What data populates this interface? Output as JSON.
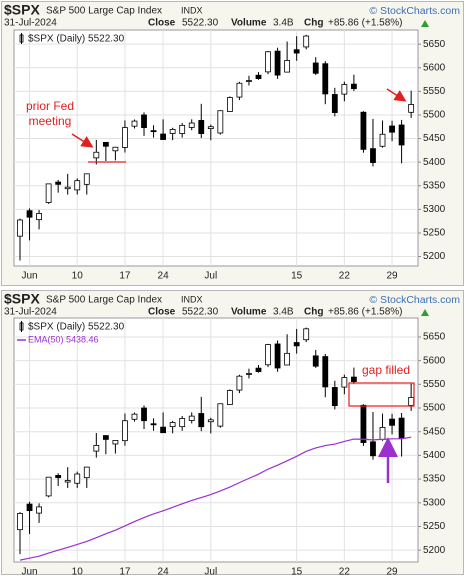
{
  "chart_data": [
    {
      "type": "candlestick",
      "symbol": "$SPX",
      "name": "S&P 500 Large Cap Index",
      "exchange": "INDX",
      "date": "31-Jul-2024",
      "quote": {
        "close_label": "Close",
        "close": "5522.30",
        "volume_label": "Volume",
        "volume": "3.4B",
        "chg_label": "Chg",
        "chg": "+85.86 (+1.58%)"
      },
      "copyright": "© StockCharts.com",
      "annotations": {
        "fed": [
          "prior Fed",
          "meeting"
        ]
      },
      "categories": [
        null,
        "Jun",
        null,
        null,
        null,
        null,
        "10",
        null,
        null,
        null,
        null,
        "17",
        null,
        null,
        null,
        "24",
        null,
        null,
        null,
        null,
        "Jul",
        null,
        null,
        null,
        null,
        null,
        null,
        null,
        null,
        "15",
        null,
        null,
        null,
        null,
        "22",
        null,
        null,
        null,
        null,
        "29",
        null,
        null
      ],
      "candles": {
        "name": "$SPX (Daily) 5522.30",
        "open": [
          5243.2,
          5297.2,
          5278.2,
          5314.5,
          5357.8,
          5343.8,
          5341.2,
          5353.0,
          5409.1,
          5441.9,
          5424.1,
          5431.1,
          5476.2,
          5500.0,
          5466.8,
          5459.6,
          5460.7,
          5460.7,
          5473.6,
          5488.5,
          5471.1,
          5461.8,
          5507.4,
          5537.9,
          5572.8,
          5584.2,
          5591.3,
          5635.2,
          5590.8,
          5638.2,
          5644.1,
          5610.1,
          5608.6,
          5543.4,
          5544.2,
          5565.3,
          5505.8,
          5428.7,
          5433.7,
          5476.6,
          5478.7,
          5505.6
        ],
        "high": [
          5280.3,
          5302.1,
          5298.8,
          5354.2,
          5362.4,
          5375.1,
          5365.8,
          5375.9,
          5447.2,
          5441.9,
          5432.4,
          5488.5,
          5490.4,
          5505.5,
          5478.3,
          5490.7,
          5472.9,
          5483.1,
          5490.8,
          5523.6,
          5479.6,
          5509.7,
          5539.3,
          5570.3,
          5583.1,
          5590.8,
          5635.4,
          5642.5,
          5655.6,
          5666.9,
          5669.7,
          5622.5,
          5614.1,
          5557.5,
          5570.4,
          5585.3,
          5508.0,
          5491.6,
          5488.3,
          5487.7,
          5489.5,
          5551.4
        ],
        "low": [
          5191.7,
          5234.3,
          5257.6,
          5311.6,
          5335.4,
          5331.3,
          5331.5,
          5331.3,
          5395.2,
          5402.5,
          5403.8,
          5420.4,
          5471.3,
          5455.6,
          5452.0,
          5447.6,
          5446.6,
          5451.9,
          5467.5,
          5451.1,
          5446.5,
          5458.4,
          5507.4,
          5531.6,
          5562.5,
          5574.6,
          5586.4,
          5576.5,
          5590.4,
          5614.8,
          5639.0,
          5584.8,
          5522.8,
          5497.0,
          5529.0,
          5550.9,
          5420.0,
          5391.0,
          5430.7,
          5444.4,
          5397.5,
          5493.8
        ],
        "close": [
          5277.5,
          5283.4,
          5291.3,
          5354.0,
          5353.0,
          5347.0,
          5360.8,
          5375.3,
          5421.0,
          5433.7,
          5431.6,
          5473.2,
          5487.0,
          5473.2,
          5464.6,
          5447.9,
          5469.3,
          5477.9,
          5482.9,
          5460.5,
          5475.1,
          5509.0,
          5537.0,
          5567.2,
          5572.9,
          5577.0,
          5633.9,
          5584.5,
          5615.4,
          5631.2,
          5667.2,
          5588.3,
          5544.6,
          5505.0,
          5564.4,
          5555.7,
          5427.1,
          5399.2,
          5459.1,
          5463.5,
          5436.4,
          5522.3
        ]
      },
      "ylim": [
        5180,
        5680
      ],
      "yticks": [
        5200,
        5250,
        5300,
        5350,
        5400,
        5450,
        5500,
        5550,
        5600,
        5650
      ],
      "grid": true
    },
    {
      "type": "candlestick",
      "symbol": "$SPX",
      "name": "S&P 500 Large Cap Index",
      "exchange": "INDX",
      "date": "31-Jul-2024",
      "quote": {
        "close_label": "Close",
        "close": "5522.30",
        "volume_label": "Volume",
        "volume": "3.4B",
        "chg_label": "Chg",
        "chg": "+85.86 (+1.58%)"
      },
      "copyright": "© StockCharts.com",
      "annotations": {
        "gap": "gap filled"
      },
      "categories": [
        null,
        "Jun",
        null,
        null,
        null,
        null,
        "10",
        null,
        null,
        null,
        null,
        "17",
        null,
        null,
        null,
        "24",
        null,
        null,
        null,
        null,
        "Jul",
        null,
        null,
        null,
        null,
        null,
        null,
        null,
        null,
        "15",
        null,
        null,
        null,
        null,
        "22",
        null,
        null,
        null,
        null,
        "29",
        null,
        null
      ],
      "candles": {
        "name": "$SPX (Daily) 5522.30",
        "open": [
          5243.2,
          5297.2,
          5278.2,
          5314.5,
          5357.8,
          5343.8,
          5341.2,
          5353.0,
          5409.1,
          5441.9,
          5424.1,
          5431.1,
          5476.2,
          5500.0,
          5466.8,
          5459.6,
          5460.7,
          5460.7,
          5473.6,
          5488.5,
          5471.1,
          5461.8,
          5507.4,
          5537.9,
          5572.8,
          5584.2,
          5591.3,
          5635.2,
          5590.8,
          5638.2,
          5644.1,
          5610.1,
          5608.6,
          5543.4,
          5544.2,
          5565.3,
          5505.8,
          5428.7,
          5433.7,
          5476.6,
          5478.7,
          5505.6
        ],
        "high": [
          5280.3,
          5302.1,
          5298.8,
          5354.2,
          5362.4,
          5375.1,
          5365.8,
          5375.9,
          5447.2,
          5441.9,
          5432.4,
          5488.5,
          5490.4,
          5505.5,
          5478.3,
          5490.7,
          5472.9,
          5483.1,
          5490.8,
          5523.6,
          5479.6,
          5509.7,
          5539.3,
          5570.3,
          5583.1,
          5590.8,
          5635.4,
          5642.5,
          5655.6,
          5666.9,
          5669.7,
          5622.5,
          5614.1,
          5557.5,
          5570.4,
          5585.3,
          5508.0,
          5491.6,
          5488.3,
          5487.7,
          5489.5,
          5551.4
        ],
        "low": [
          5191.7,
          5234.3,
          5257.6,
          5311.6,
          5335.4,
          5331.3,
          5331.5,
          5331.3,
          5395.2,
          5402.5,
          5403.8,
          5420.4,
          5471.3,
          5455.6,
          5452.0,
          5447.6,
          5446.6,
          5451.9,
          5467.5,
          5451.1,
          5446.5,
          5458.4,
          5507.4,
          5531.6,
          5562.5,
          5574.6,
          5586.4,
          5576.5,
          5590.4,
          5614.8,
          5639.0,
          5584.8,
          5522.8,
          5497.0,
          5529.0,
          5550.9,
          5420.0,
          5391.0,
          5430.7,
          5444.4,
          5397.5,
          5493.8
        ],
        "close": [
          5277.5,
          5283.4,
          5291.3,
          5354.0,
          5353.0,
          5347.0,
          5360.8,
          5375.3,
          5421.0,
          5433.7,
          5431.6,
          5473.2,
          5487.0,
          5473.2,
          5464.6,
          5447.9,
          5469.3,
          5477.9,
          5482.9,
          5460.5,
          5475.1,
          5509.0,
          5537.0,
          5567.2,
          5572.9,
          5577.0,
          5633.9,
          5584.5,
          5615.4,
          5631.2,
          5667.2,
          5588.3,
          5544.6,
          5505.0,
          5564.4,
          5555.7,
          5427.1,
          5399.2,
          5459.1,
          5463.5,
          5436.4,
          5522.3
        ]
      },
      "series": [
        {
          "name": "EMA(50) 5438.46",
          "color": "#9b30d0",
          "values": [
            5179.0,
            5183.1,
            5187.3,
            5193.9,
            5200.0,
            5205.8,
            5212.0,
            5218.3,
            5226.3,
            5234.4,
            5242.1,
            5251.2,
            5260.4,
            5268.8,
            5276.4,
            5283.1,
            5290.3,
            5297.7,
            5305.0,
            5311.0,
            5317.4,
            5325.0,
            5333.2,
            5342.5,
            5351.5,
            5360.3,
            5371.0,
            5379.4,
            5388.6,
            5398.1,
            5408.6,
            5415.7,
            5420.7,
            5424.0,
            5429.5,
            5434.4,
            5434.1,
            5432.8,
            5433.8,
            5435.0,
            5435.1,
            5438.46
          ]
        }
      ],
      "ylim": [
        5175,
        5690
      ],
      "yticks": [
        5200,
        5250,
        5300,
        5350,
        5400,
        5450,
        5500,
        5550,
        5600,
        5650
      ],
      "grid": true
    }
  ]
}
